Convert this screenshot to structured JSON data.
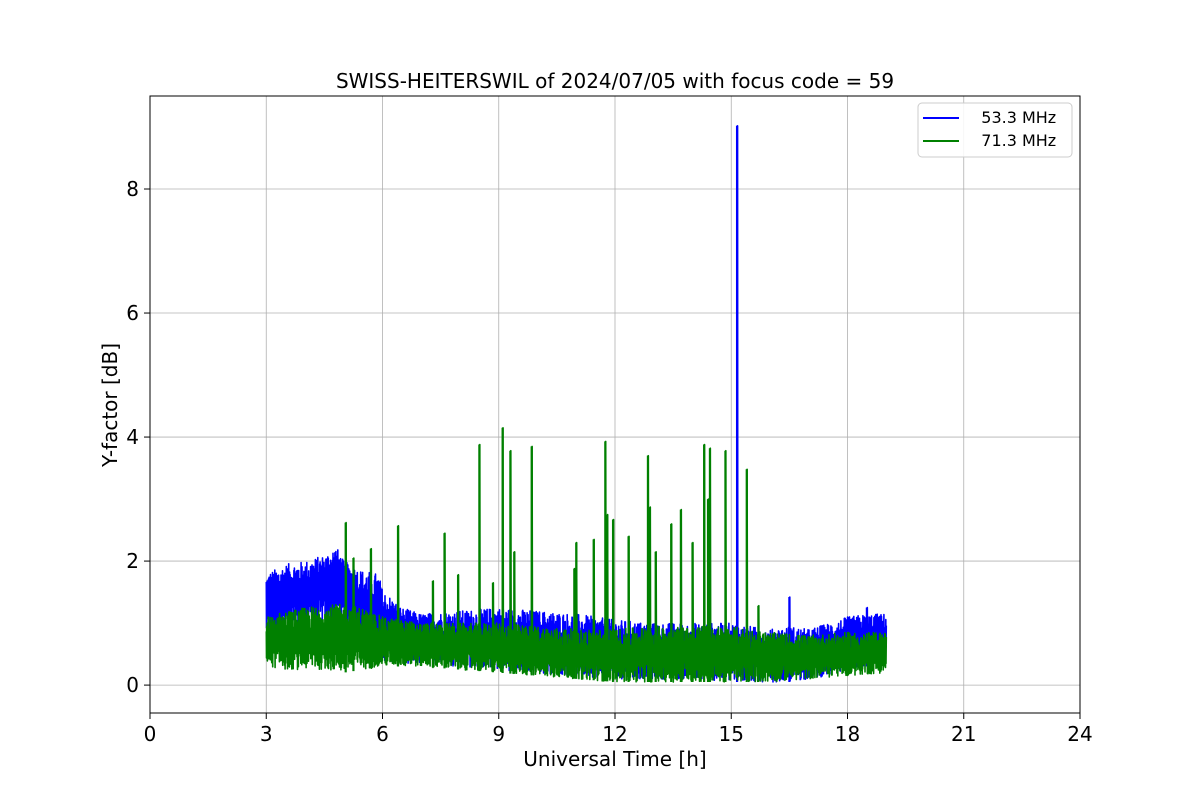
{
  "chart_data": {
    "type": "line",
    "title": "SWISS-HEITERSWIL of 2024/07/05 with focus code = 59",
    "xlabel": "Universal Time [h]",
    "ylabel": "Y-factor [dB]",
    "xlim": [
      0,
      24
    ],
    "ylim": [
      -0.45,
      9.5
    ],
    "xticks": [
      0,
      3,
      6,
      9,
      12,
      15,
      18,
      21,
      24
    ],
    "yticks": [
      0,
      2,
      4,
      6,
      8
    ],
    "grid": true,
    "legend_position": "top-right",
    "data_range_x": [
      3,
      19
    ],
    "series": [
      {
        "name": "   53.3 MHz",
        "color": "#0000ff",
        "envelope": {
          "x": [
            3.0,
            3.5,
            4.0,
            4.5,
            4.8,
            5.0,
            5.5,
            5.9,
            6.0,
            6.5,
            7.0,
            8.0,
            9.0,
            10.0,
            11.0,
            12.0,
            13.0,
            14.0,
            15.0,
            16.0,
            16.5,
            17.0,
            18.0,
            18.5,
            19.0
          ],
          "upper": [
            1.8,
            1.95,
            2.0,
            2.1,
            2.25,
            2.0,
            1.85,
            1.8,
            1.55,
            1.25,
            1.15,
            1.2,
            1.25,
            1.2,
            1.15,
            1.05,
            1.0,
            1.0,
            1.0,
            0.9,
            0.95,
            0.9,
            1.1,
            1.15,
            1.15
          ],
          "lower": [
            0.8,
            0.9,
            0.95,
            1.0,
            1.1,
            1.0,
            0.7,
            0.5,
            0.4,
            0.35,
            0.35,
            0.3,
            0.25,
            0.2,
            0.15,
            0.1,
            0.1,
            0.1,
            0.05,
            0.05,
            0.05,
            0.1,
            0.2,
            0.3,
            0.4
          ]
        },
        "spikes": [
          {
            "x": 15.15,
            "y": 9.02
          },
          {
            "x": 16.5,
            "y": 1.42
          },
          {
            "x": 18.5,
            "y": 1.25
          }
        ]
      },
      {
        "name": "   71.3 MHz",
        "color": "#008000",
        "envelope": {
          "x": [
            3.0,
            3.5,
            4.0,
            4.5,
            5.0,
            5.5,
            6.0,
            7.0,
            8.0,
            9.0,
            10.0,
            11.0,
            12.0,
            13.0,
            14.0,
            15.0,
            16.0,
            17.0,
            18.0,
            19.0
          ],
          "upper": [
            1.1,
            1.2,
            1.25,
            1.3,
            1.3,
            1.25,
            1.1,
            1.0,
            1.0,
            1.0,
            0.95,
            0.9,
            0.9,
            0.95,
            0.95,
            0.95,
            0.85,
            0.8,
            0.85,
            0.85
          ],
          "lower": [
            0.3,
            0.25,
            0.25,
            0.25,
            0.2,
            0.25,
            0.3,
            0.3,
            0.25,
            0.2,
            0.15,
            0.1,
            0.05,
            0.05,
            0.05,
            0.05,
            0.05,
            0.1,
            0.15,
            0.2
          ]
        },
        "spikes": [
          {
            "x": 5.05,
            "y": 2.62
          },
          {
            "x": 5.25,
            "y": 2.05
          },
          {
            "x": 5.7,
            "y": 2.2
          },
          {
            "x": 6.4,
            "y": 2.57
          },
          {
            "x": 7.3,
            "y": 1.68
          },
          {
            "x": 7.6,
            "y": 2.45
          },
          {
            "x": 7.95,
            "y": 1.78
          },
          {
            "x": 8.5,
            "y": 3.88
          },
          {
            "x": 8.85,
            "y": 1.65
          },
          {
            "x": 9.1,
            "y": 4.15
          },
          {
            "x": 9.3,
            "y": 3.78
          },
          {
            "x": 9.4,
            "y": 2.15
          },
          {
            "x": 9.85,
            "y": 3.85
          },
          {
            "x": 10.95,
            "y": 1.88
          },
          {
            "x": 11.0,
            "y": 2.3
          },
          {
            "x": 11.45,
            "y": 2.35
          },
          {
            "x": 11.75,
            "y": 3.93
          },
          {
            "x": 11.8,
            "y": 2.75
          },
          {
            "x": 11.95,
            "y": 2.67
          },
          {
            "x": 12.35,
            "y": 2.4
          },
          {
            "x": 12.85,
            "y": 3.7
          },
          {
            "x": 12.9,
            "y": 2.87
          },
          {
            "x": 13.05,
            "y": 2.15
          },
          {
            "x": 13.45,
            "y": 2.6
          },
          {
            "x": 13.7,
            "y": 2.83
          },
          {
            "x": 14.0,
            "y": 2.3
          },
          {
            "x": 14.3,
            "y": 3.88
          },
          {
            "x": 14.45,
            "y": 3.82
          },
          {
            "x": 14.4,
            "y": 3.0
          },
          {
            "x": 14.85,
            "y": 3.78
          },
          {
            "x": 15.4,
            "y": 3.48
          },
          {
            "x": 15.7,
            "y": 1.28
          }
        ]
      }
    ]
  }
}
